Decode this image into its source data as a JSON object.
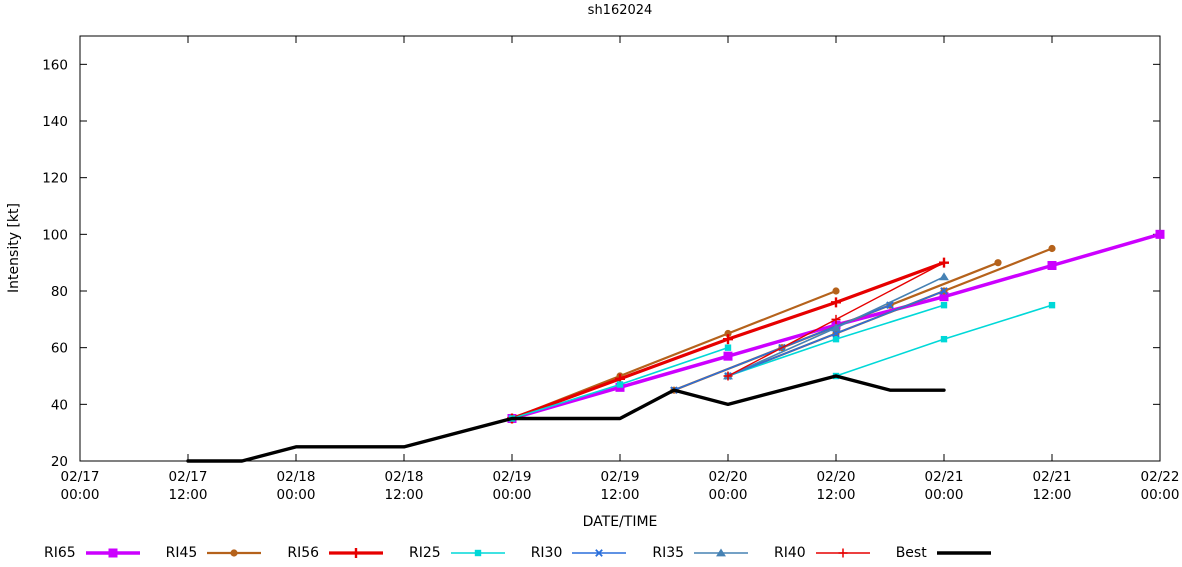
{
  "chart_data": {
    "type": "line",
    "title": "sh162024",
    "xlabel": "DATE/TIME",
    "ylabel": "Intensity [kt]",
    "x_unit": "hours since 02/17 00:00",
    "xlim": [
      0,
      120
    ],
    "ylim": [
      20,
      170
    ],
    "grid": false,
    "legend_position": "bottom",
    "yticks": [
      20,
      40,
      60,
      80,
      100,
      120,
      140,
      160
    ],
    "xticks": [
      {
        "hours": 0,
        "date": "02/17",
        "time": "00:00"
      },
      {
        "hours": 12,
        "date": "02/17",
        "time": "12:00"
      },
      {
        "hours": 24,
        "date": "02/18",
        "time": "00:00"
      },
      {
        "hours": 36,
        "date": "02/18",
        "time": "12:00"
      },
      {
        "hours": 48,
        "date": "02/19",
        "time": "00:00"
      },
      {
        "hours": 60,
        "date": "02/19",
        "time": "12:00"
      },
      {
        "hours": 72,
        "date": "02/20",
        "time": "00:00"
      },
      {
        "hours": 84,
        "date": "02/20",
        "time": "12:00"
      },
      {
        "hours": 96,
        "date": "02/21",
        "time": "00:00"
      },
      {
        "hours": 108,
        "date": "02/21",
        "time": "12:00"
      },
      {
        "hours": 120,
        "date": "02/22",
        "time": "00:00"
      }
    ],
    "series": [
      {
        "name": "RI65",
        "color": "#cc00ff",
        "marker": "square",
        "marker_size": 4.5,
        "line_width": 3.5,
        "segments": [
          [
            [
              48,
              35
            ],
            [
              60,
              46
            ],
            [
              72,
              57
            ],
            [
              84,
              68
            ],
            [
              96,
              78
            ],
            [
              108,
              89
            ],
            [
              120,
              100
            ]
          ]
        ]
      },
      {
        "name": "RI45",
        "color": "#b5621b",
        "marker": "circle",
        "marker_size": 3.6,
        "line_width": 2.2,
        "segments": [
          [
            [
              48,
              35
            ],
            [
              60,
              50
            ],
            [
              72,
              65
            ],
            [
              84,
              80
            ]
          ],
          [
            [
              66,
              45
            ],
            [
              78,
              60
            ],
            [
              90,
              75
            ],
            [
              102,
              90
            ]
          ],
          [
            [
              72,
              50
            ],
            [
              84,
              65
            ],
            [
              96,
              80
            ],
            [
              108,
              95
            ]
          ]
        ]
      },
      {
        "name": "RI56",
        "color": "#e60000",
        "marker": "plus",
        "marker_size": 5,
        "line_width": 3.2,
        "segments": [
          [
            [
              48,
              35
            ],
            [
              60,
              49
            ],
            [
              72,
              63
            ],
            [
              84,
              76
            ],
            [
              96,
              90
            ]
          ]
        ]
      },
      {
        "name": "RI25",
        "color": "#00d8d8",
        "marker": "square",
        "marker_size": 3.2,
        "line_width": 1.6,
        "segments": [
          [
            [
              48,
              35
            ],
            [
              60,
              47
            ],
            [
              72,
              60
            ]
          ],
          [
            [
              72,
              50
            ],
            [
              84,
              63
            ],
            [
              96,
              75
            ]
          ],
          [
            [
              84,
              50
            ],
            [
              96,
              63
            ],
            [
              108,
              75
            ]
          ]
        ]
      },
      {
        "name": "RI30",
        "color": "#2a6fdb",
        "marker": "x",
        "marker_size": 4,
        "line_width": 1.6,
        "segments": [
          [
            [
              66,
              45
            ],
            [
              78,
              60
            ],
            [
              90,
              75
            ]
          ],
          [
            [
              72,
              50
            ],
            [
              84,
              65
            ],
            [
              96,
              80
            ]
          ]
        ]
      },
      {
        "name": "RI35",
        "color": "#4682b4",
        "marker": "triangle",
        "marker_size": 4.5,
        "line_width": 1.6,
        "segments": [
          [
            [
              72,
              50
            ],
            [
              84,
              67
            ],
            [
              96,
              85
            ]
          ]
        ]
      },
      {
        "name": "RI40",
        "color": "#e60000",
        "marker": "plus",
        "marker_size": 4.5,
        "line_width": 1.4,
        "segments": [
          [
            [
              72,
              50
            ],
            [
              84,
              70
            ],
            [
              96,
              90
            ]
          ]
        ]
      },
      {
        "name": "Best",
        "color": "#000000",
        "marker": "none",
        "marker_size": 0,
        "line_width": 3.4,
        "segments": [
          [
            [
              12,
              20
            ],
            [
              18,
              20
            ],
            [
              24,
              25
            ],
            [
              36,
              25
            ],
            [
              48,
              35
            ],
            [
              60,
              35
            ],
            [
              66,
              45
            ],
            [
              72,
              40
            ],
            [
              84,
              50
            ],
            [
              90,
              45
            ],
            [
              96,
              45
            ]
          ]
        ]
      }
    ]
  }
}
